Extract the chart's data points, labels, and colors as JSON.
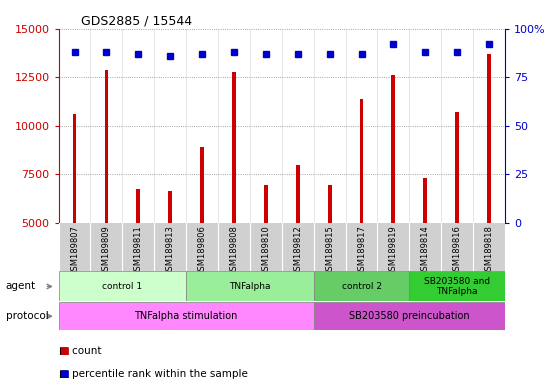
{
  "title": "GDS2885 / 15544",
  "samples": [
    "GSM189807",
    "GSM189809",
    "GSM189811",
    "GSM189813",
    "GSM189806",
    "GSM189808",
    "GSM189810",
    "GSM189812",
    "GSM189815",
    "GSM189817",
    "GSM189819",
    "GSM189814",
    "GSM189816",
    "GSM189818"
  ],
  "counts": [
    10600,
    12900,
    6750,
    6650,
    8900,
    12750,
    6950,
    8000,
    6950,
    11400,
    12600,
    7300,
    10700,
    13700
  ],
  "percentile_ranks": [
    88,
    88,
    87,
    86,
    87,
    88,
    87,
    87,
    87,
    87,
    92,
    88,
    88,
    92
  ],
  "bar_color": "#cc0000",
  "dot_color": "#0000cc",
  "ylim_left": [
    5000,
    15000
  ],
  "ylim_right": [
    0,
    100
  ],
  "yticks_left": [
    5000,
    7500,
    10000,
    12500,
    15000
  ],
  "yticks_right": [
    0,
    25,
    50,
    75,
    100
  ],
  "grid_color": "#888888",
  "sample_bg": "#d0d0d0",
  "agent_groups": [
    {
      "label": "control 1",
      "start": 0,
      "end": 4,
      "color": "#ccffcc"
    },
    {
      "label": "TNFalpha",
      "start": 4,
      "end": 8,
      "color": "#99ee99"
    },
    {
      "label": "control 2",
      "start": 8,
      "end": 11,
      "color": "#66cc66"
    },
    {
      "label": "SB203580 and\nTNFalpha",
      "start": 11,
      "end": 14,
      "color": "#33cc33"
    }
  ],
  "protocol_groups": [
    {
      "label": "TNFalpha stimulation",
      "start": 0,
      "end": 8,
      "color": "#ff88ff"
    },
    {
      "label": "SB203580 preincubation",
      "start": 8,
      "end": 14,
      "color": "#cc55cc"
    }
  ],
  "legend_red": "count",
  "legend_blue": "percentile rank within the sample"
}
